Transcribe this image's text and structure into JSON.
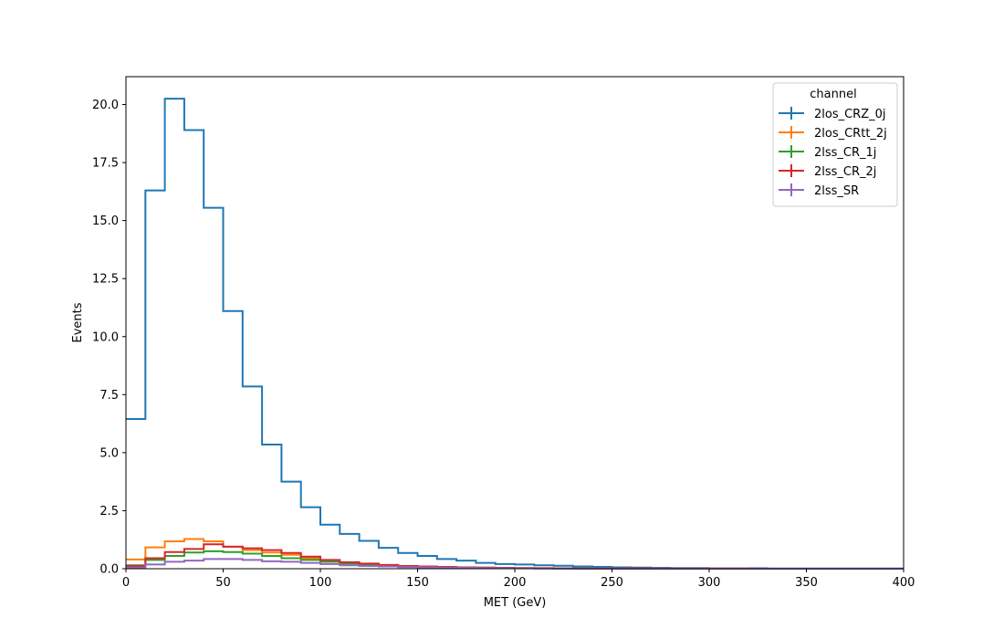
{
  "chart_data": {
    "type": "histogram-step",
    "title": "",
    "xlabel": "MET (GeV)",
    "ylabel": "Events",
    "xlim": [
      0,
      400
    ],
    "ylim": [
      0,
      21.2
    ],
    "grid": false,
    "xticks": [
      "0",
      "50",
      "100",
      "150",
      "200",
      "250",
      "300",
      "350",
      "400"
    ],
    "yticks": [
      "0.0",
      "2.5",
      "5.0",
      "7.5",
      "10.0",
      "12.5",
      "15.0",
      "17.5",
      "20.0"
    ],
    "legend": {
      "title": "channel",
      "position": "top-right"
    },
    "bin_edges": [
      0,
      10,
      20,
      30,
      40,
      50,
      60,
      70,
      80,
      90,
      100,
      110,
      120,
      130,
      140,
      150,
      160,
      170,
      180,
      190,
      200,
      210,
      220,
      230,
      240,
      250,
      260,
      270,
      280,
      290,
      300,
      310,
      320,
      330,
      340,
      350,
      360,
      370,
      380,
      390,
      400
    ],
    "series": [
      {
        "name": "2los_CRZ_0j",
        "color": "#1f77b4",
        "values": [
          6.45,
          16.3,
          20.25,
          18.9,
          15.55,
          11.1,
          7.85,
          5.35,
          3.75,
          2.65,
          1.9,
          1.5,
          1.2,
          0.9,
          0.68,
          0.55,
          0.42,
          0.35,
          0.25,
          0.2,
          0.18,
          0.15,
          0.13,
          0.1,
          0.08,
          0.06,
          0.05,
          0.04,
          0.03,
          0.03,
          0.02,
          0.02,
          0.02,
          0.01,
          0.01,
          0.01,
          0.01,
          0.01,
          0.01,
          0.01
        ]
      },
      {
        "name": "2los_CRtt_2j",
        "color": "#ff7f0e",
        "values": [
          0.4,
          0.92,
          1.18,
          1.28,
          1.18,
          0.95,
          0.8,
          0.7,
          0.6,
          0.45,
          0.35,
          0.25,
          0.2,
          0.15,
          0.12,
          0.1,
          0.08,
          0.06,
          0.05,
          0.04,
          0.03,
          0.03,
          0.02,
          0.02,
          0.01,
          0.01,
          0.01,
          0.01,
          0.01,
          0.01,
          0.01,
          0.01,
          0,
          0,
          0,
          0,
          0,
          0,
          0,
          0
        ]
      },
      {
        "name": "2lss_CR_1j",
        "color": "#2ca02c",
        "values": [
          0.15,
          0.38,
          0.55,
          0.7,
          0.75,
          0.72,
          0.65,
          0.55,
          0.45,
          0.38,
          0.3,
          0.22,
          0.18,
          0.14,
          0.1,
          0.08,
          0.06,
          0.05,
          0.04,
          0.03,
          0.02,
          0.02,
          0.01,
          0.01,
          0.01,
          0.01,
          0.01,
          0,
          0,
          0,
          0,
          0,
          0,
          0,
          0,
          0,
          0,
          0,
          0,
          0
        ]
      },
      {
        "name": "2lss_CR_2j",
        "color": "#d62728",
        "values": [
          0.12,
          0.45,
          0.72,
          0.85,
          1.05,
          0.95,
          0.88,
          0.8,
          0.68,
          0.52,
          0.38,
          0.28,
          0.22,
          0.16,
          0.12,
          0.1,
          0.08,
          0.06,
          0.05,
          0.04,
          0.03,
          0.02,
          0.02,
          0.01,
          0.01,
          0.01,
          0.01,
          0,
          0,
          0,
          0,
          0,
          0,
          0,
          0,
          0,
          0,
          0,
          0,
          0
        ]
      },
      {
        "name": "2lss_SR",
        "color": "#9467bd",
        "values": [
          0.05,
          0.18,
          0.3,
          0.35,
          0.42,
          0.42,
          0.38,
          0.32,
          0.3,
          0.25,
          0.2,
          0.15,
          0.12,
          0.1,
          0.07,
          0.06,
          0.05,
          0.04,
          0.03,
          0.02,
          0.02,
          0.01,
          0.01,
          0.01,
          0.01,
          0,
          0,
          0,
          0,
          0,
          0,
          0,
          0,
          0,
          0,
          0,
          0,
          0,
          0,
          0
        ]
      }
    ]
  }
}
